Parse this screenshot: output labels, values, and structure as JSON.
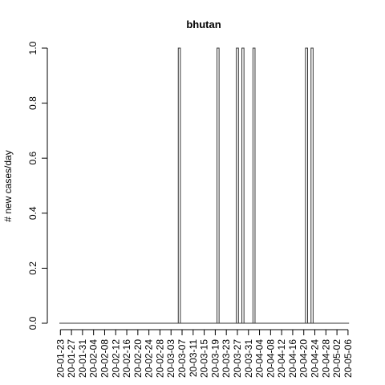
{
  "chart_data": {
    "type": "bar",
    "title": "bhutan",
    "xlabel": "",
    "ylabel": "# new cases/day",
    "ylim": [
      0,
      1
    ],
    "yticks": [
      "0.0",
      "0.2",
      "0.4",
      "0.6",
      "0.8",
      "1.0"
    ],
    "start_date": "2020-01-23",
    "num_days": 105,
    "x_tick_labels": [
      "20-01-23",
      "20-01-27",
      "20-01-31",
      "20-02-04",
      "20-02-08",
      "20-02-12",
      "20-02-16",
      "20-02-20",
      "20-02-24",
      "20-02-28",
      "20-03-03",
      "20-03-07",
      "20-03-11",
      "20-03-15",
      "20-03-19",
      "20-03-23",
      "20-03-27",
      "20-03-31",
      "20-04-04",
      "20-04-08",
      "20-04-12",
      "20-04-16",
      "20-04-20",
      "20-04-24",
      "20-04-28",
      "20-05-02",
      "20-05-06"
    ],
    "series": [
      {
        "values_by_date": [
          {
            "date": "20-03-06",
            "value": 1
          },
          {
            "date": "20-03-20",
            "value": 1
          },
          {
            "date": "20-03-27",
            "value": 1
          },
          {
            "date": "20-03-29",
            "value": 1
          },
          {
            "date": "20-04-02",
            "value": 1
          },
          {
            "date": "20-04-21",
            "value": 1
          },
          {
            "date": "20-04-23",
            "value": 1
          }
        ]
      }
    ]
  }
}
